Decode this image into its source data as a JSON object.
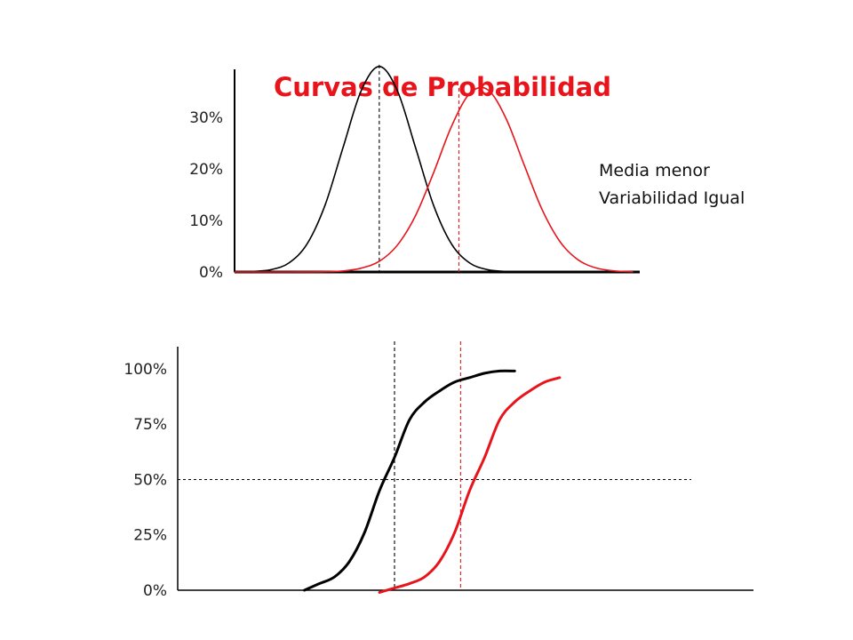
{
  "chart_data": [
    {
      "type": "line",
      "title": "Curvas de Probabilidad",
      "title_color": "#e8141c",
      "annotation": [
        "Media menor",
        "Variabilidad Igual"
      ],
      "x": [
        -4,
        -3.5,
        -3,
        -2.5,
        -2,
        -1.5,
        -1,
        -0.5,
        0,
        0.5,
        1,
        1.5,
        2,
        2.5,
        3,
        3.5,
        4,
        4.5,
        5,
        5.5,
        6,
        6.5,
        7
      ],
      "xlim": [
        -4,
        7.2
      ],
      "ylim": [
        0,
        0.39
      ],
      "yticks": [
        {
          "value": 0,
          "label": "0%"
        },
        {
          "value": 0.1,
          "label": "10%"
        },
        {
          "value": 0.2,
          "label": "20%"
        },
        {
          "value": 0.3,
          "label": "30%"
        }
      ],
      "mean_lines": [
        0,
        2.2
      ],
      "series": [
        {
          "color": "#000000",
          "values": [
            0.0002,
            0.001,
            0.0044,
            0.0175,
            0.054,
            0.1295,
            0.242,
            0.352,
            0.3989,
            0.352,
            0.242,
            0.1295,
            0.054,
            0.0175,
            0.0044,
            0.001,
            0.0002,
            0,
            0,
            0,
            0,
            0,
            0
          ]
        },
        {
          "color": "#e8141c",
          "values": [
            0,
            0,
            0,
            0,
            0.0001,
            0.0005,
            0.002,
            0.0074,
            0.0208,
            0.0521,
            0.1092,
            0.1926,
            0.2833,
            0.3466,
            0.3538,
            0.2986,
            0.2089,
            0.1213,
            0.0585,
            0.0234,
            0.0077,
            0.0021,
            0.0005
          ]
        }
      ]
    },
    {
      "type": "line",
      "x": [
        -3,
        -2.5,
        -2,
        -1.5,
        -1,
        -0.5,
        0,
        0.5,
        1,
        1.5,
        2,
        2.5,
        3,
        3.5,
        4,
        4.5,
        5,
        5.5
      ],
      "xlim": [
        -6,
        10
      ],
      "ylim": [
        0,
        1.1
      ],
      "yticks": [
        {
          "value": 0,
          "label": "0%"
        },
        {
          "value": 0.25,
          "label": "25%"
        },
        {
          "value": 0.5,
          "label": "50%"
        },
        {
          "value": 0.75,
          "label": "75%"
        },
        {
          "value": 1,
          "label": "100%"
        }
      ],
      "reference_line": 0.5,
      "mean_lines": [
        0,
        2.2
      ],
      "series": [
        {
          "color": "#000000",
          "values": [
            0,
            0.03,
            0.06,
            0.13,
            0.26,
            0.45,
            0.6,
            0.77,
            0.85,
            0.9,
            0.94,
            0.96,
            0.98,
            0.99,
            0.99,
            null,
            null,
            null
          ]
        },
        {
          "color": "#e8141c",
          "values": [
            null,
            null,
            null,
            null,
            null,
            -0.01,
            0.01,
            0.03,
            0.06,
            0.13,
            0.26,
            0.45,
            0.6,
            0.77,
            0.85,
            0.9,
            0.94,
            0.96
          ]
        }
      ]
    }
  ]
}
